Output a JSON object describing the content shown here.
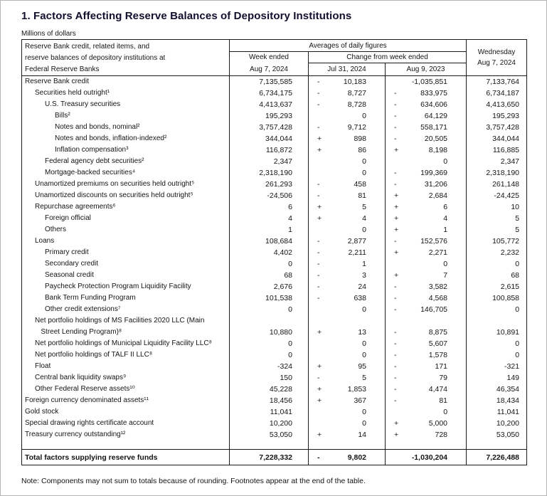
{
  "page": {
    "title": "1. Factors Affecting Reserve Balances of Depository Institutions",
    "subtitle": "Millions of dollars",
    "note": "Note: Components may not sum to totals because of rounding. Footnotes appear at the end of the table."
  },
  "table": {
    "header": {
      "stub_line1": "Reserve Bank credit, related items, and",
      "stub_line2": "reserve balances of depository institutions at",
      "stub_line3": "Federal Reserve Banks",
      "averages": "Averages of daily figures",
      "week_ended": "Week ended",
      "week_ended_date": "Aug 7, 2024",
      "change_from": "Change from week ended",
      "change_date1": "Jul 31, 2024",
      "change_date2": "Aug 9, 2023",
      "wednesday_line1": "Wednesday",
      "wednesday_date": "Aug 7, 2024"
    },
    "rows": [
      {
        "label": "Reserve Bank credit",
        "indent": 0,
        "week": "7,135,585",
        "c1s": "-",
        "c1v": "10,183",
        "c2s": "",
        "c2v": "-1,035,851",
        "wed": "7,133,764"
      },
      {
        "label": "Securities held outright¹",
        "indent": 1,
        "week": "6,734,175",
        "c1s": "-",
        "c1v": "8,727",
        "c2s": "-",
        "c2v": "833,975",
        "wed": "6,734,187"
      },
      {
        "label": "U.S. Treasury securities",
        "indent": 2,
        "week": "4,413,637",
        "c1s": "-",
        "c1v": "8,728",
        "c2s": "-",
        "c2v": "634,606",
        "wed": "4,413,650"
      },
      {
        "label": "Bills²",
        "indent": 3,
        "week": "195,293",
        "c1s": "",
        "c1v": "0",
        "c2s": "-",
        "c2v": "64,129",
        "wed": "195,293"
      },
      {
        "label": "Notes and bonds, nominal²",
        "indent": 3,
        "week": "3,757,428",
        "c1s": "-",
        "c1v": "9,712",
        "c2s": "-",
        "c2v": "558,171",
        "wed": "3,757,428"
      },
      {
        "label": "Notes and bonds, inflation-indexed²",
        "indent": 3,
        "week": "344,044",
        "c1s": "+",
        "c1v": "898",
        "c2s": "-",
        "c2v": "20,505",
        "wed": "344,044"
      },
      {
        "label": "Inflation compensation³",
        "indent": 3,
        "week": "116,872",
        "c1s": "+",
        "c1v": "86",
        "c2s": "+",
        "c2v": "8,198",
        "wed": "116,885"
      },
      {
        "label": "Federal agency debt securities²",
        "indent": 2,
        "week": "2,347",
        "c1s": "",
        "c1v": "0",
        "c2s": "",
        "c2v": "0",
        "wed": "2,347"
      },
      {
        "label": "Mortgage-backed securities⁴",
        "indent": 2,
        "week": "2,318,190",
        "c1s": "",
        "c1v": "0",
        "c2s": "-",
        "c2v": "199,369",
        "wed": "2,318,190"
      },
      {
        "label": "Unamortized premiums on securities held outright⁵",
        "indent": 1,
        "week": "261,293",
        "c1s": "-",
        "c1v": "458",
        "c2s": "-",
        "c2v": "31,206",
        "wed": "261,148"
      },
      {
        "label": "Unamortized discounts on securities held outright⁵",
        "indent": 1,
        "week": "-24,506",
        "c1s": "-",
        "c1v": "81",
        "c2s": "+",
        "c2v": "2,684",
        "wed": "-24,425"
      },
      {
        "label": "Repurchase agreements⁶",
        "indent": 1,
        "week": "6",
        "c1s": "+",
        "c1v": "5",
        "c2s": "+",
        "c2v": "6",
        "wed": "10"
      },
      {
        "label": "Foreign official",
        "indent": 2,
        "week": "4",
        "c1s": "+",
        "c1v": "4",
        "c2s": "+",
        "c2v": "4",
        "wed": "5"
      },
      {
        "label": "Others",
        "indent": 2,
        "week": "1",
        "c1s": "",
        "c1v": "0",
        "c2s": "+",
        "c2v": "1",
        "wed": "5"
      },
      {
        "label": "Loans",
        "indent": 1,
        "week": "108,684",
        "c1s": "-",
        "c1v": "2,877",
        "c2s": "-",
        "c2v": "152,576",
        "wed": "105,772"
      },
      {
        "label": "Primary credit",
        "indent": 2,
        "week": "4,402",
        "c1s": "-",
        "c1v": "2,211",
        "c2s": "+",
        "c2v": "2,271",
        "wed": "2,232"
      },
      {
        "label": "Secondary credit",
        "indent": 2,
        "week": "0",
        "c1s": "-",
        "c1v": "1",
        "c2s": "",
        "c2v": "0",
        "wed": "0"
      },
      {
        "label": "Seasonal credit",
        "indent": 2,
        "week": "68",
        "c1s": "-",
        "c1v": "3",
        "c2s": "+",
        "c2v": "7",
        "wed": "68"
      },
      {
        "label": "Paycheck Protection Program Liquidity Facility",
        "indent": 2,
        "week": "2,676",
        "c1s": "-",
        "c1v": "24",
        "c2s": "-",
        "c2v": "3,582",
        "wed": "2,615"
      },
      {
        "label": "Bank Term Funding Program",
        "indent": 2,
        "week": "101,538",
        "c1s": "-",
        "c1v": "638",
        "c2s": "-",
        "c2v": "4,568",
        "wed": "100,858"
      },
      {
        "label": "Other credit extensions⁷",
        "indent": 2,
        "week": "0",
        "c1s": "",
        "c1v": "0",
        "c2s": "-",
        "c2v": "146,705",
        "wed": "0"
      },
      {
        "label": "Net portfolio holdings of MS Facilities 2020 LLC (Main",
        "indent": 1,
        "week": "",
        "c1s": "",
        "c1v": "",
        "c2s": "",
        "c2v": "",
        "wed": ""
      },
      {
        "label": "Street Lending Program)⁸",
        "indent": 1.6,
        "week": "10,880",
        "c1s": "+",
        "c1v": "13",
        "c2s": "-",
        "c2v": "8,875",
        "wed": "10,891"
      },
      {
        "label": "Net portfolio holdings of Municipal Liquidity Facility LLC⁸",
        "indent": 1,
        "week": "0",
        "c1s": "",
        "c1v": "0",
        "c2s": "-",
        "c2v": "5,607",
        "wed": "0"
      },
      {
        "label": "Net portfolio holdings of TALF II LLC⁸",
        "indent": 1,
        "week": "0",
        "c1s": "",
        "c1v": "0",
        "c2s": "-",
        "c2v": "1,578",
        "wed": "0"
      },
      {
        "label": "Float",
        "indent": 1,
        "week": "-324",
        "c1s": "+",
        "c1v": "95",
        "c2s": "-",
        "c2v": "171",
        "wed": "-321"
      },
      {
        "label": "Central bank liquidity swaps⁹",
        "indent": 1,
        "week": "150",
        "c1s": "-",
        "c1v": "5",
        "c2s": "-",
        "c2v": "79",
        "wed": "149"
      },
      {
        "label": "Other Federal Reserve assets¹⁰",
        "indent": 1,
        "week": "45,228",
        "c1s": "+",
        "c1v": "1,853",
        "c2s": "-",
        "c2v": "4,474",
        "wed": "46,354"
      },
      {
        "label": "Foreign currency denominated assets¹¹",
        "indent": 0,
        "week": "18,456",
        "c1s": "+",
        "c1v": "367",
        "c2s": "-",
        "c2v": "81",
        "wed": "18,434"
      },
      {
        "label": "Gold stock",
        "indent": 0,
        "week": "11,041",
        "c1s": "",
        "c1v": "0",
        "c2s": "",
        "c2v": "0",
        "wed": "11,041"
      },
      {
        "label": "Special drawing rights certificate account",
        "indent": 0,
        "week": "10,200",
        "c1s": "",
        "c1v": "0",
        "c2s": "+",
        "c2v": "5,000",
        "wed": "10,200"
      },
      {
        "label": "Treasury currency outstanding¹²",
        "indent": 0,
        "week": "53,050",
        "c1s": "+",
        "c1v": "14",
        "c2s": "+",
        "c2v": "728",
        "wed": "53,050"
      },
      {
        "spacer": true
      },
      {
        "label": "Total factors supplying reserve funds",
        "indent": 0,
        "week": "7,228,332",
        "c1s": "-",
        "c1v": "9,802",
        "c2s": "",
        "c2v": "-1,030,204",
        "wed": "7,226,488",
        "total": true
      }
    ]
  }
}
